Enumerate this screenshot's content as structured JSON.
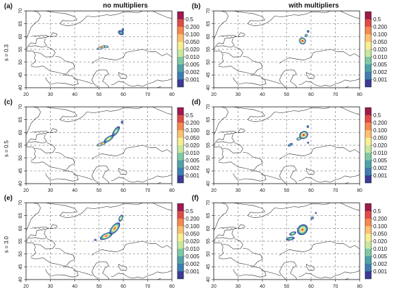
{
  "figure": {
    "column_titles": [
      "no multipliers",
      "with multipliers"
    ],
    "row_labels": [
      "s = 0.3",
      "s = 0.5",
      "s = 3.0"
    ]
  },
  "colors": {
    "scale": [
      "#3B3B98",
      "#3C7FB0",
      "#4FA3A8",
      "#7DC9A4",
      "#C8E89E",
      "#F7EE93",
      "#FDC16F",
      "#F5894E",
      "#E04B48",
      "#9E1A4F"
    ],
    "grid": "#7f7f7f",
    "coast": "#222222"
  },
  "chart_data": [
    {
      "id": "a",
      "label": "(a)",
      "type": "heatmap",
      "column": "no multipliers",
      "row": "s = 0.3",
      "xlim": [
        20,
        80
      ],
      "ylim": [
        40,
        70
      ],
      "xticks": [
        "20",
        "30",
        "40",
        "50",
        "60",
        "70",
        "80"
      ],
      "yticks": [
        "40",
        "45",
        "50",
        "55",
        "60",
        "65",
        "70"
      ],
      "grid": "dashed, every 10° longitude and 5° latitude",
      "legend": {
        "placement": "right",
        "levels": [
          "0.001",
          "0.002",
          "0.005",
          "0.010",
          "0.020",
          "0.050",
          "0.100",
          "0.200",
          "0.5"
        ]
      },
      "blobs": [
        {
          "lon": 51.0,
          "lat": 55.7,
          "lon_spread": 2.0,
          "lat_spread": 0.6,
          "angle": 20,
          "peak_level": 9
        },
        {
          "lon": 53.0,
          "lat": 56.0,
          "lon_spread": 1.0,
          "lat_spread": 0.5,
          "angle": 0,
          "peak_level": 6
        },
        {
          "lon": 59.0,
          "lat": 61.5,
          "lon_spread": 0.9,
          "lat_spread": 1.2,
          "angle": 60,
          "peak_level": 3
        },
        {
          "lon": 59.8,
          "lat": 62.6,
          "lon_spread": 0.5,
          "lat_spread": 0.6,
          "angle": 0,
          "peak_level": 2
        }
      ]
    },
    {
      "id": "b",
      "label": "(b)",
      "type": "heatmap",
      "column": "with multipliers",
      "row": "s = 0.3",
      "xlim": [
        20,
        80
      ],
      "ylim": [
        40,
        70
      ],
      "xticks": [
        "20",
        "30",
        "40",
        "50",
        "60",
        "70",
        "80"
      ],
      "yticks": [
        "40",
        "45",
        "50",
        "55",
        "60",
        "65",
        "70"
      ],
      "grid": "dashed, every 10° longitude and 5° latitude",
      "legend": {
        "placement": "right",
        "levels": [
          "0.001",
          "0.002",
          "0.005",
          "0.010",
          "0.020",
          "0.050",
          "0.100",
          "0.200",
          "0.5"
        ]
      },
      "blobs": [
        {
          "lon": 56.5,
          "lat": 58.3,
          "lon_spread": 1.4,
          "lat_spread": 1.4,
          "angle": 40,
          "peak_level": 9
        },
        {
          "lon": 58.0,
          "lat": 60.4,
          "lon_spread": 0.6,
          "lat_spread": 0.6,
          "angle": 0,
          "peak_level": 4
        },
        {
          "lon": 58.8,
          "lat": 62.0,
          "lon_spread": 0.5,
          "lat_spread": 0.5,
          "angle": 0,
          "peak_level": 2
        }
      ]
    },
    {
      "id": "c",
      "label": "(c)",
      "type": "heatmap",
      "column": "no multipliers",
      "row": "s = 0.5",
      "xlim": [
        20,
        80
      ],
      "ylim": [
        40,
        70
      ],
      "xticks": [
        "20",
        "30",
        "40",
        "50",
        "60",
        "70",
        "80"
      ],
      "yticks": [
        "40",
        "45",
        "50",
        "55",
        "60",
        "65",
        "70"
      ],
      "grid": "dashed, every 10° longitude and 5° latitude",
      "legend": {
        "placement": "right",
        "levels": [
          "0.001",
          "0.002",
          "0.005",
          "0.010",
          "0.020",
          "0.050",
          "0.100",
          "0.200",
          "0.5"
        ]
      },
      "blobs": [
        {
          "lon": 51.0,
          "lat": 55.5,
          "lon_spread": 2.0,
          "lat_spread": 0.7,
          "angle": 20,
          "peak_level": 9
        },
        {
          "lon": 54.0,
          "lat": 57.5,
          "lon_spread": 2.4,
          "lat_spread": 0.9,
          "angle": 35,
          "peak_level": 6
        },
        {
          "lon": 57.0,
          "lat": 60.5,
          "lon_spread": 2.4,
          "lat_spread": 0.9,
          "angle": 55,
          "peak_level": 5
        },
        {
          "lon": 59.5,
          "lat": 64.0,
          "lon_spread": 0.5,
          "lat_spread": 0.6,
          "angle": 0,
          "peak_level": 2
        }
      ]
    },
    {
      "id": "d",
      "label": "(d)",
      "type": "heatmap",
      "column": "with multipliers",
      "row": "s = 0.5",
      "xlim": [
        20,
        80
      ],
      "ylim": [
        40,
        70
      ],
      "xticks": [
        "20",
        "30",
        "40",
        "50",
        "60",
        "70",
        "80"
      ],
      "yticks": [
        "40",
        "45",
        "50",
        "55",
        "60",
        "65",
        "70"
      ],
      "grid": "dashed, every 10° longitude and 5° latitude",
      "legend": {
        "placement": "right",
        "levels": [
          "0.001",
          "0.002",
          "0.005",
          "0.010",
          "0.020",
          "0.050",
          "0.100",
          "0.200",
          "0.5"
        ]
      },
      "blobs": [
        {
          "lon": 57.0,
          "lat": 59.0,
          "lon_spread": 1.9,
          "lat_spread": 1.5,
          "angle": 30,
          "peak_level": 9
        },
        {
          "lon": 55.0,
          "lat": 57.5,
          "lon_spread": 1.0,
          "lat_spread": 0.6,
          "angle": 20,
          "peak_level": 6
        },
        {
          "lon": 51.5,
          "lat": 55.2,
          "lon_spread": 1.1,
          "lat_spread": 0.5,
          "angle": 30,
          "peak_level": 3
        },
        {
          "lon": 58.7,
          "lat": 62.3,
          "lon_spread": 0.5,
          "lat_spread": 0.5,
          "angle": 0,
          "peak_level": 2
        },
        {
          "lon": 58.8,
          "lat": 56.0,
          "lon_spread": 0.4,
          "lat_spread": 0.4,
          "angle": 0,
          "peak_level": 1
        }
      ]
    },
    {
      "id": "e",
      "label": "(e)",
      "type": "heatmap",
      "column": "no multipliers",
      "row": "s = 3.0",
      "xlim": [
        20,
        80
      ],
      "ylim": [
        40,
        70
      ],
      "xticks": [
        "20",
        "30",
        "40",
        "50",
        "60",
        "70",
        "80"
      ],
      "yticks": [
        "40",
        "45",
        "50",
        "55",
        "60",
        "65",
        "70"
      ],
      "grid": "dashed, every 10° longitude and 5° latitude",
      "legend": {
        "placement": "right",
        "levels": [
          "0.001",
          "0.002",
          "0.005",
          "0.010",
          "0.020",
          "0.050",
          "0.100",
          "0.200",
          "0.5"
        ]
      },
      "blobs": [
        {
          "lon": 53.0,
          "lat": 57.0,
          "lon_spread": 2.8,
          "lat_spread": 1.1,
          "angle": 25,
          "peak_level": 8
        },
        {
          "lon": 56.5,
          "lat": 60.0,
          "lon_spread": 3.0,
          "lat_spread": 1.3,
          "angle": 50,
          "peak_level": 8
        },
        {
          "lon": 59.0,
          "lat": 64.0,
          "lon_spread": 1.5,
          "lat_spread": 0.8,
          "angle": 65,
          "peak_level": 6
        },
        {
          "lon": 48.5,
          "lat": 55.5,
          "lon_spread": 0.5,
          "lat_spread": 0.4,
          "angle": 0,
          "peak_level": 2
        }
      ]
    },
    {
      "id": "f",
      "label": "(f)",
      "type": "heatmap",
      "column": "with multipliers",
      "row": "s = 3.0",
      "xlim": [
        20,
        80
      ],
      "ylim": [
        40,
        70
      ],
      "xticks": [
        "20",
        "30",
        "40",
        "50",
        "60",
        "70",
        "80"
      ],
      "yticks": [
        "40",
        "45",
        "50",
        "55",
        "60",
        "65",
        "70"
      ],
      "grid": "dashed, every 10° longitude and 5° latitude",
      "legend": {
        "placement": "right",
        "levels": [
          "0.001",
          "0.002",
          "0.005",
          "0.010",
          "0.020",
          "0.050",
          "0.100",
          "0.200",
          "0.5"
        ]
      },
      "blobs": [
        {
          "lon": 56.5,
          "lat": 59.5,
          "lon_spread": 2.4,
          "lat_spread": 1.9,
          "angle": 45,
          "peak_level": 8
        },
        {
          "lon": 52.5,
          "lat": 58.0,
          "lon_spread": 1.5,
          "lat_spread": 0.7,
          "angle": 20,
          "peak_level": 5
        },
        {
          "lon": 51.5,
          "lat": 56.0,
          "lon_spread": 1.8,
          "lat_spread": 0.7,
          "angle": 10,
          "peak_level": 4
        },
        {
          "lon": 60.5,
          "lat": 64.0,
          "lon_spread": 0.8,
          "lat_spread": 0.5,
          "angle": 40,
          "peak_level": 3
        },
        {
          "lon": 62.0,
          "lat": 66.0,
          "lon_spread": 0.4,
          "lat_spread": 0.4,
          "angle": 0,
          "peak_level": 2
        }
      ]
    }
  ]
}
